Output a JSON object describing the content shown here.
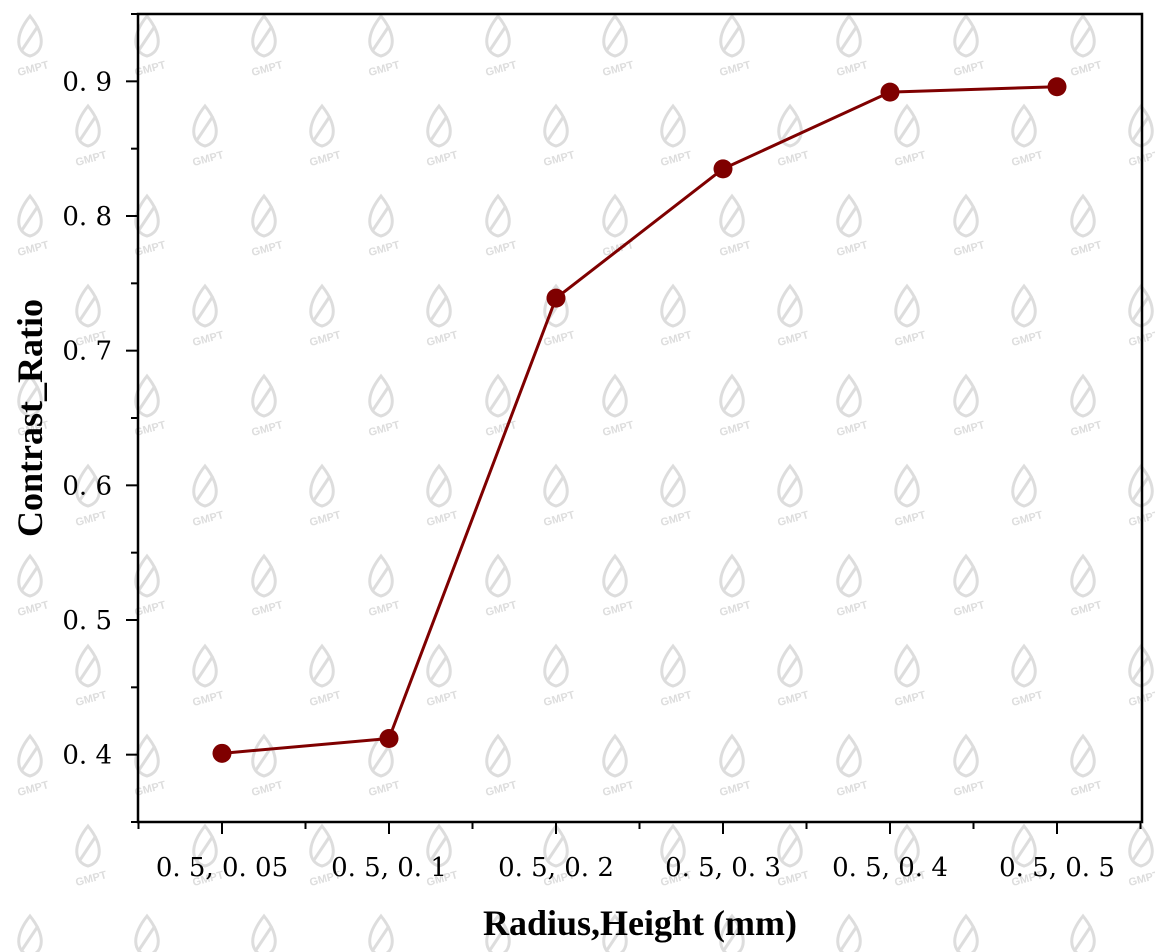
{
  "chart_data": {
    "type": "line",
    "categories": [
      "0. 5, 0. 05",
      "0. 5, 0. 1",
      "0. 5, 0. 2",
      "0. 5, 0. 3",
      "0. 5, 0. 4",
      "0. 5, 0. 5"
    ],
    "values": [
      0.401,
      0.412,
      0.739,
      0.835,
      0.892,
      0.896
    ],
    "xlabel": "Radius,Height (mm)",
    "ylabel": "Contrast_Ratio",
    "ylim": [
      0.35,
      0.95
    ],
    "yticks": [
      0.4,
      0.5,
      0.6,
      0.7,
      0.8,
      0.9
    ],
    "ytick_labels": [
      "0. 4",
      "0. 5",
      "0. 6",
      "0. 7",
      "0. 8",
      "0. 9"
    ],
    "grid": false,
    "legend": "none",
    "line_color": "#7f0000",
    "marker_color": "#7f0000"
  },
  "watermark": {
    "text": "GMPT",
    "color": "#dddddd"
  }
}
